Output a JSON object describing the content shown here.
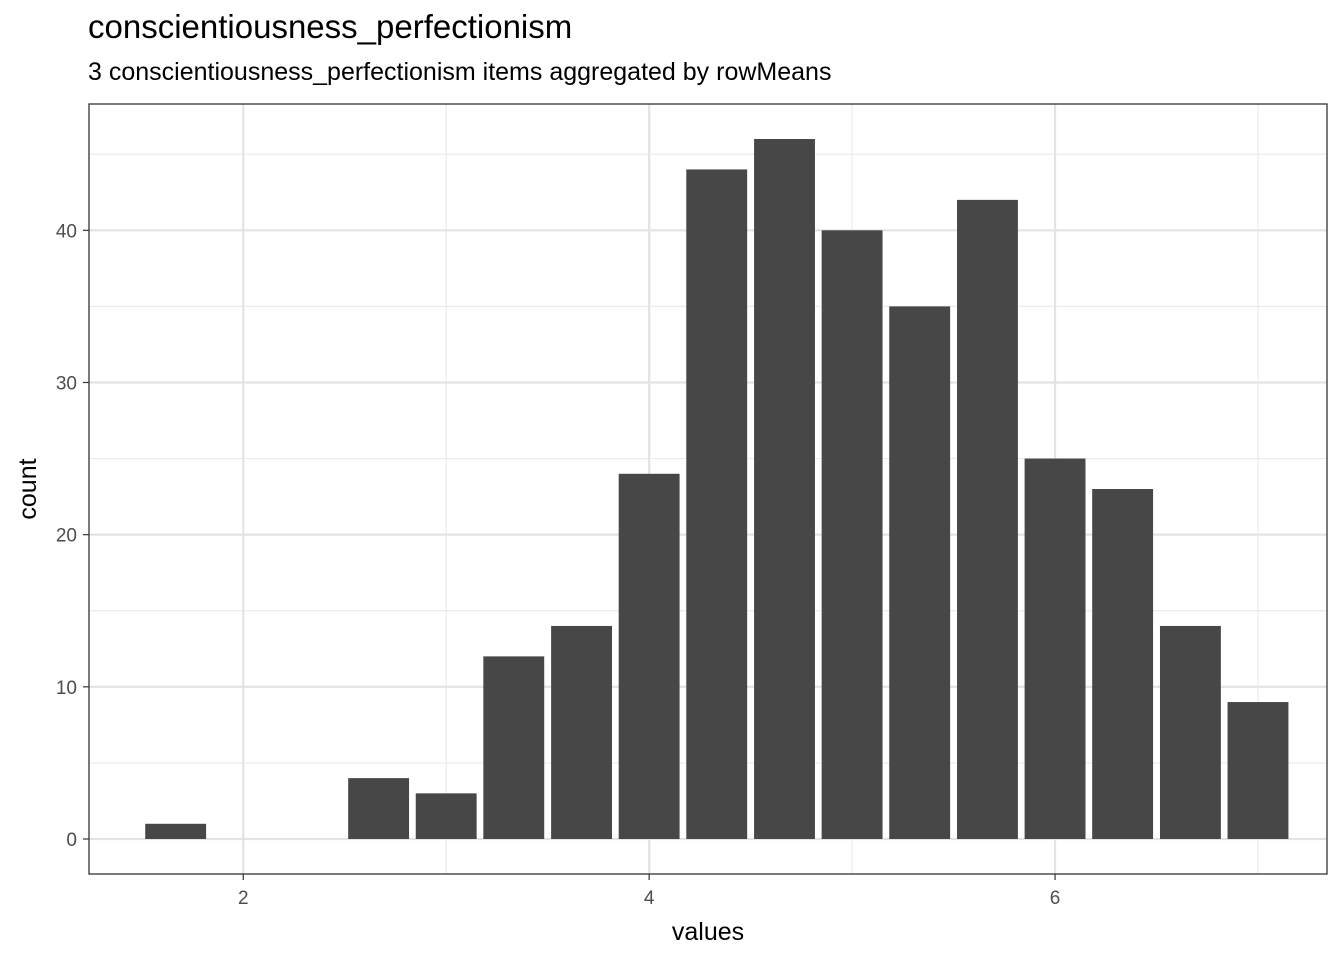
{
  "chart_data": {
    "type": "bar",
    "title": "conscientiousness_perfectionism",
    "subtitle": "3 conscientiousness_perfectionism items aggregated by rowMeans",
    "xlabel": "values",
    "ylabel": "count",
    "x_ticks": [
      2,
      4,
      6
    ],
    "y_ticks": [
      0,
      10,
      20,
      30,
      40
    ],
    "xlim": [
      1.24,
      7.34
    ],
    "ylim": [
      -2.3,
      48.3
    ],
    "grid": true,
    "bar_color": "#474747",
    "bins": [
      {
        "x": 1.667,
        "count": 1
      },
      {
        "x": 2.333,
        "count": 0
      },
      {
        "x": 2.667,
        "count": 4
      },
      {
        "x": 3.0,
        "count": 3
      },
      {
        "x": 3.333,
        "count": 12
      },
      {
        "x": 3.667,
        "count": 14
      },
      {
        "x": 4.0,
        "count": 24
      },
      {
        "x": 4.333,
        "count": 44
      },
      {
        "x": 4.667,
        "count": 46
      },
      {
        "x": 5.0,
        "count": 40
      },
      {
        "x": 5.333,
        "count": 35
      },
      {
        "x": 5.667,
        "count": 42
      },
      {
        "x": 6.0,
        "count": 25
      },
      {
        "x": 6.333,
        "count": 23
      },
      {
        "x": 6.667,
        "count": 14
      },
      {
        "x": 7.0,
        "count": 9
      }
    ]
  }
}
